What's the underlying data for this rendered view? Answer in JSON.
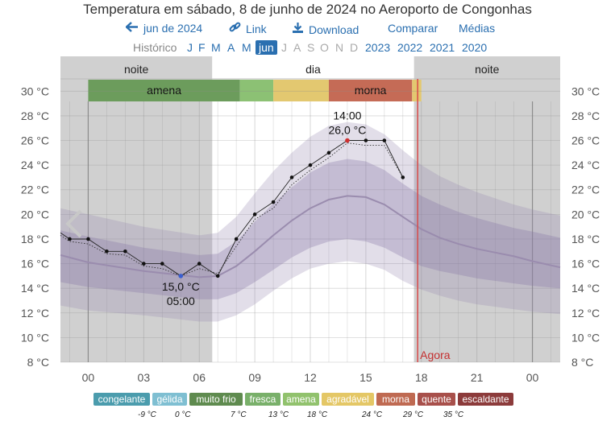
{
  "title": "Temperatura em sábado, 8 de junho de 2024 no Aeroporto de Congonhas",
  "toolbar": {
    "month_label": "jun de 2024",
    "link_label": "Link",
    "download_label": "Download",
    "compare_label": "Comparar",
    "averages_label": "Médias"
  },
  "history": {
    "label": "Histórico",
    "months": [
      "J",
      "F",
      "M",
      "A",
      "M",
      "jun",
      "J",
      "A",
      "S",
      "O",
      "N",
      "D"
    ],
    "selected_index": 5,
    "years": [
      "2023",
      "2022",
      "2021",
      "2020"
    ]
  },
  "bands": {
    "night_label": "noite",
    "day_label": "dia",
    "night2_label": "noite"
  },
  "comfort_strip": [
    {
      "label": "amena",
      "from": 0.0,
      "to": 8.2,
      "color": "#6c9c5c"
    },
    {
      "label": "",
      "from": 8.2,
      "to": 10.0,
      "color": "#8cc174"
    },
    {
      "label": "",
      "from": 10.0,
      "to": 13.0,
      "color": "#e3c870"
    },
    {
      "label": "morna",
      "from": 13.0,
      "to": 17.5,
      "color": "#c56b56"
    },
    {
      "label": "",
      "from": 17.5,
      "to": 18.0,
      "color": "#e3c870"
    }
  ],
  "now_label": "Agora",
  "annotations": {
    "max_time": "14:00",
    "max_value": "26,0 °C",
    "min_value": "15,0 °C",
    "min_time": "05:00"
  },
  "legend": {
    "categories": [
      {
        "label": "congelante",
        "color": "#4b9cad"
      },
      {
        "label": "gélida",
        "color": "#7fbfd2"
      },
      {
        "label": "muito frio",
        "color": "#5f8b4f"
      },
      {
        "label": "fresca",
        "color": "#79b06a"
      },
      {
        "label": "amena",
        "color": "#91c26d"
      },
      {
        "label": "agradável",
        "color": "#e4c766"
      },
      {
        "label": "morna",
        "color": "#bf6a52"
      },
      {
        "label": "quente",
        "color": "#a8504b"
      },
      {
        "label": "escaldante",
        "color": "#8c3b3b"
      }
    ],
    "thresholds": [
      "-9 °C",
      "0 °C",
      "7 °C",
      "13 °C",
      "18 °C",
      "24 °C",
      "29 °C",
      "35 °C"
    ]
  },
  "chart_data": {
    "type": "line",
    "title": "Temperatura em sábado, 8 de junho de 2024 no Aeroporto de Congonhas",
    "xlabel": "",
    "ylabel": "",
    "x_ticks": [
      "00",
      "03",
      "06",
      "09",
      "12",
      "15",
      "18",
      "21",
      "00"
    ],
    "y_ticks": [
      "8 °C",
      "10 °C",
      "12 °C",
      "14 °C",
      "16 °C",
      "18 °C",
      "20 °C",
      "22 °C",
      "24 °C",
      "26 °C",
      "28 °C",
      "30 °C"
    ],
    "ylim": [
      8,
      31
    ],
    "xlim": [
      -1.5,
      25.5
    ],
    "night_end_hour": 6.7,
    "night_start_hour": 17.6,
    "now_hour": 17.8,
    "series": [
      {
        "name": "Temperatura",
        "x": [
          -1.5,
          -1,
          0,
          1,
          2,
          3,
          4,
          5,
          6,
          7,
          8,
          9,
          10,
          11,
          12,
          13,
          14,
          15,
          16,
          17
        ],
        "y": [
          18.5,
          18.0,
          18.0,
          17.0,
          17.0,
          16.0,
          16.0,
          15.0,
          16.0,
          15.0,
          18.0,
          20.0,
          21.0,
          23.0,
          24.0,
          25.0,
          26.0,
          26.0,
          26.0,
          23.0
        ]
      },
      {
        "name": "Temperatura (dotted)",
        "x": [
          -1.5,
          -1,
          0,
          1,
          2,
          3,
          4,
          5,
          6,
          7,
          8,
          9,
          10,
          11,
          12,
          13,
          14,
          15,
          16,
          17
        ],
        "y": [
          18.3,
          17.8,
          17.6,
          16.8,
          16.7,
          15.8,
          15.6,
          15.0,
          15.6,
          15.2,
          17.4,
          19.6,
          20.5,
          22.4,
          23.6,
          24.6,
          25.8,
          25.6,
          25.6,
          23.0
        ]
      },
      {
        "name": "Média",
        "x": [
          -1.5,
          0,
          3,
          6,
          7,
          8,
          9,
          10,
          11,
          12,
          13,
          14,
          15,
          16,
          17,
          18,
          19,
          20,
          21,
          22,
          23,
          24,
          25.5
        ],
        "y": [
          16.7,
          16.1,
          15.4,
          14.9,
          15.0,
          15.8,
          17.0,
          18.3,
          19.5,
          20.5,
          21.2,
          21.5,
          21.4,
          20.8,
          19.8,
          18.8,
          18.1,
          17.6,
          17.2,
          16.9,
          16.6,
          16.2,
          15.7
        ]
      },
      {
        "name": "Faixa 25-75%",
        "x": [
          -1.5,
          0,
          3,
          6,
          7,
          8,
          9,
          10,
          11,
          12,
          13,
          14,
          15,
          16,
          17,
          18,
          19,
          20,
          21,
          22,
          23,
          24,
          25.5
        ],
        "low": [
          14.5,
          14.1,
          13.6,
          13.1,
          13.1,
          13.6,
          14.5,
          15.5,
          16.5,
          17.3,
          17.8,
          18.0,
          17.8,
          17.3,
          16.5,
          15.8,
          15.4,
          15.1,
          14.8,
          14.6,
          14.4,
          14.2,
          14.0
        ],
        "high": [
          18.7,
          18.2,
          17.3,
          16.7,
          16.8,
          17.8,
          19.4,
          20.9,
          22.2,
          23.4,
          24.2,
          24.5,
          24.3,
          23.6,
          22.5,
          21.5,
          20.8,
          20.2,
          19.7,
          19.3,
          18.9,
          18.6,
          18.1
        ]
      },
      {
        "name": "Faixa 10-90%",
        "x": [
          -1.5,
          0,
          3,
          6,
          7,
          8,
          9,
          10,
          11,
          12,
          13,
          14,
          15,
          16,
          17,
          18,
          19,
          20,
          21,
          22,
          23,
          24,
          25.5
        ],
        "low": [
          12.6,
          12.2,
          11.8,
          11.3,
          11.3,
          11.8,
          12.7,
          13.8,
          14.8,
          15.6,
          16.0,
          16.2,
          16.0,
          15.5,
          14.6,
          13.9,
          13.4,
          13.0,
          12.7,
          12.5,
          12.3,
          12.1,
          11.9
        ],
        "high": [
          20.5,
          20.0,
          19.0,
          18.3,
          18.5,
          19.8,
          21.7,
          23.5,
          25.0,
          26.3,
          27.2,
          27.5,
          27.3,
          26.5,
          25.2,
          24.0,
          23.1,
          22.4,
          21.8,
          21.3,
          20.8,
          20.4,
          19.9
        ]
      }
    ]
  }
}
